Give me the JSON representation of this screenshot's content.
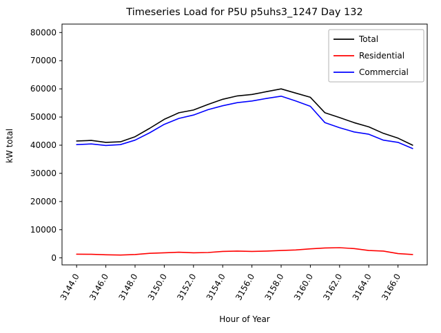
{
  "chart_data": {
    "type": "line",
    "title": "Timeseries Load for P5U p5uhs3_1247  Day 132",
    "xlabel": "Hour of Year",
    "ylabel": "kW total",
    "xlim": [
      3143,
      3168
    ],
    "ylim": [
      -2500,
      83000
    ],
    "grid": false,
    "legend_position": "upper right",
    "xticks": {
      "values": [
        3144,
        3146,
        3148,
        3150,
        3152,
        3154,
        3156,
        3158,
        3160,
        3162,
        3164,
        3166
      ],
      "labels": [
        "3144.0",
        "3146.0",
        "3148.0",
        "3150.0",
        "3152.0",
        "3154.0",
        "3156.0",
        "3158.0",
        "3160.0",
        "3162.0",
        "3164.0",
        "3166.0"
      ]
    },
    "yticks": {
      "values": [
        0,
        10000,
        20000,
        30000,
        40000,
        50000,
        60000,
        70000,
        80000
      ],
      "labels": [
        "0",
        "10000",
        "20000",
        "30000",
        "40000",
        "50000",
        "60000",
        "70000",
        "80000"
      ]
    },
    "x": [
      3144,
      3145,
      3146,
      3147,
      3148,
      3149,
      3150,
      3151,
      3152,
      3153,
      3154,
      3155,
      3156,
      3157,
      3158,
      3159,
      3160,
      3161,
      3162,
      3163,
      3164,
      3165,
      3166,
      3167
    ],
    "series": [
      {
        "name": "Total",
        "color": "#000000",
        "values": [
          41500,
          41700,
          41000,
          41200,
          43000,
          46000,
          49200,
          51500,
          52500,
          54500,
          56300,
          57500,
          58000,
          59000,
          60000,
          58500,
          57000,
          51500,
          49800,
          48000,
          46500,
          44200,
          42500,
          40000
        ]
      },
      {
        "name": "Residential",
        "color": "#ff0000",
        "values": [
          1300,
          1250,
          1100,
          1000,
          1200,
          1600,
          1800,
          2000,
          1800,
          1900,
          2300,
          2400,
          2300,
          2400,
          2600,
          2800,
          3200,
          3500,
          3600,
          3300,
          2600,
          2400,
          1500,
          1200
        ]
      },
      {
        "name": "Commercial",
        "color": "#0000ff",
        "values": [
          40200,
          40450,
          39900,
          40200,
          41800,
          44400,
          47400,
          49500,
          50700,
          52600,
          54000,
          55100,
          55700,
          56600,
          57400,
          55700,
          53800,
          48000,
          46200,
          44700,
          43900,
          41800,
          41000,
          38800
        ]
      }
    ]
  }
}
